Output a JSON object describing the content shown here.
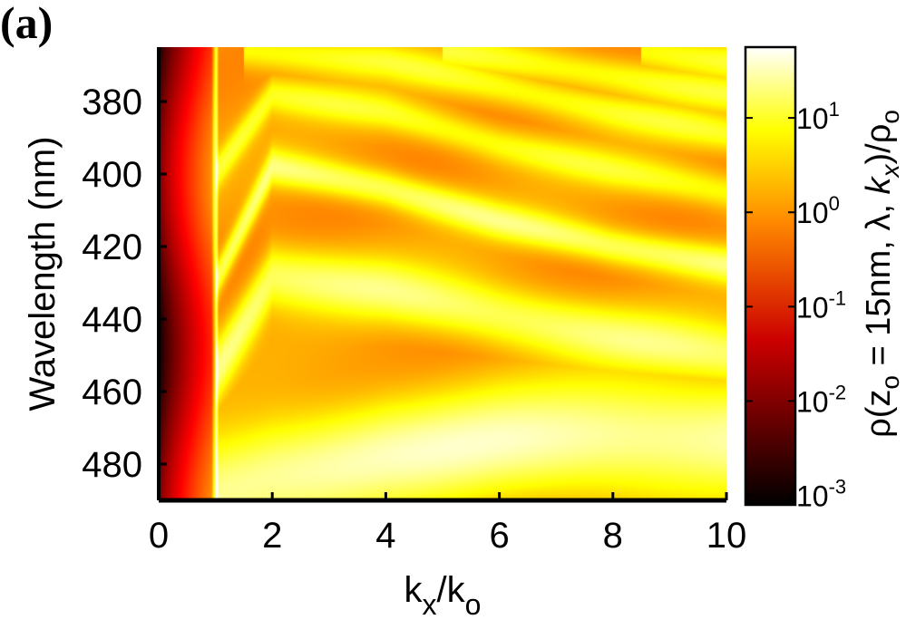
{
  "panel_label": "(a)",
  "chart_data": {
    "type": "heatmap",
    "title": "",
    "xlabel": "k_x/k_o",
    "xlabel_parts": {
      "k": "k",
      "x": "x",
      "slash": "/",
      "o": "o"
    },
    "ylabel": "Wavelength (nm)",
    "colorbar_label": "ρ(z_o = 15nm, λ, k_x)/ρ_o",
    "colorbar_label_parts": {
      "rho": "ρ(z",
      "o": "o",
      "eq": " = 15nm, λ, ",
      "k": "k",
      "x": "x",
      "close": ")/ρ",
      "o2": "o"
    },
    "xlim": [
      0,
      10
    ],
    "ylim": [
      365,
      490
    ],
    "y_reversed": true,
    "x_ticks": [
      0,
      2,
      4,
      6,
      8,
      10
    ],
    "y_ticks": [
      380,
      400,
      420,
      440,
      460,
      480
    ],
    "colorbar": {
      "scale": "log",
      "range": [
        -3.1,
        1.75
      ],
      "colormap": "hot",
      "ticks": [
        {
          "exp": -3,
          "base": "10",
          "power": "-3"
        },
        {
          "exp": -2,
          "base": "10",
          "power": "-2"
        },
        {
          "exp": -1,
          "base": "10",
          "power": "-1"
        },
        {
          "exp": 0,
          "base": "10",
          "power": "0"
        },
        {
          "exp": 1,
          "base": "10",
          "power": "1"
        }
      ]
    },
    "light_line_kx": 1.0,
    "mode_branches": [
      {
        "name_hint": "",
        "points": [
          [
            1.0,
            488
          ],
          [
            2.0,
            483
          ],
          [
            4.0,
            477
          ],
          [
            6.0,
            474
          ],
          [
            8.0,
            473
          ],
          [
            10.0,
            472
          ]
        ]
      },
      {
        "name_hint": "",
        "points": [
          [
            1.0,
            455
          ],
          [
            2.0,
            428
          ],
          [
            4.0,
            432
          ],
          [
            6.0,
            439
          ],
          [
            8.0,
            445
          ],
          [
            10.0,
            450
          ]
        ]
      },
      {
        "name_hint": "",
        "points": [
          [
            1.0,
            430
          ],
          [
            2.0,
            398
          ],
          [
            4.0,
            404
          ],
          [
            6.0,
            413
          ],
          [
            8.0,
            420
          ],
          [
            10.0,
            425
          ]
        ]
      },
      {
        "name_hint": "",
        "points": [
          [
            1.0,
            400
          ],
          [
            2.0,
            378
          ],
          [
            4.0,
            383
          ],
          [
            6.0,
            392
          ],
          [
            8.0,
            399
          ],
          [
            10.0,
            405
          ]
        ]
      },
      {
        "name_hint": "",
        "points": [
          [
            1.5,
            366
          ],
          [
            4.0,
            369
          ],
          [
            6.0,
            376
          ],
          [
            8.0,
            383
          ],
          [
            10.0,
            389
          ]
        ]
      },
      {
        "name_hint": "",
        "points": [
          [
            5.0,
            366
          ],
          [
            8.0,
            373
          ],
          [
            10.0,
            378
          ]
        ]
      },
      {
        "name_hint": "",
        "points": [
          [
            8.5,
            366
          ],
          [
            10.0,
            369
          ]
        ]
      }
    ]
  }
}
